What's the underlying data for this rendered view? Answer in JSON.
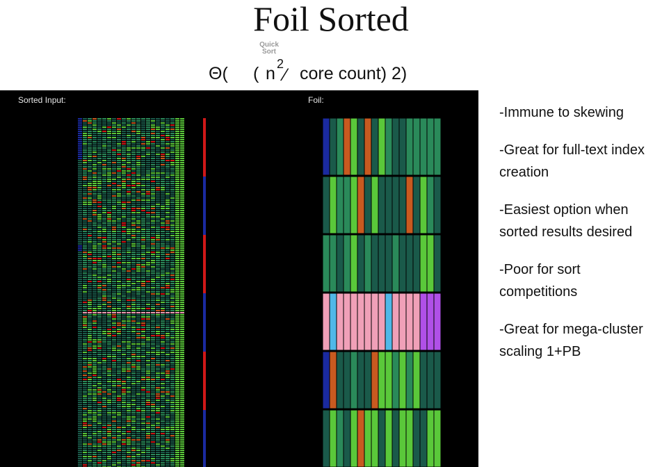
{
  "title": "Foil Sorted",
  "quick_sort_line1": "Quick",
  "quick_sort_line2": "Sort",
  "formula": {
    "theta": "Θ(",
    "open_paren": "(",
    "n": "n",
    "exponent": "2",
    "slash": "⁄",
    "rest": "core count) 2)"
  },
  "panel": {
    "left_label": "Sorted Input:",
    "right_label": "Foil:"
  },
  "bullets": [
    "-Immune to skewing",
    "-Great for full-text index creation",
    "-Easiest option when sorted results desired",
    "-Poor for sort competitions",
    "-Great for mega-cluster scaling 1+PB"
  ],
  "colors": {
    "panel_bg": "#000000",
    "green_dark": "#1a5a4a",
    "green_mid": "#2a8a5a",
    "green_bright": "#5ac83a",
    "orange": "#c85a20",
    "red": "#d01818",
    "blue": "#1a2aa0",
    "pink": "#f0a0b8",
    "cyan": "#50b8e8",
    "purple": "#b050e8"
  }
}
